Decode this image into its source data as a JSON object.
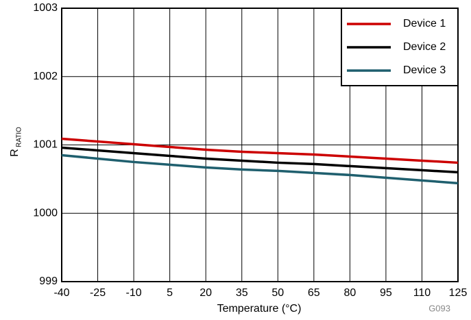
{
  "chart_data": {
    "type": "line",
    "x_label": "Temperature (°C)",
    "y_label": {
      "main": "R",
      "sub": "RATIO"
    },
    "note": "G093",
    "x": [
      -40,
      -25,
      -10,
      5,
      20,
      35,
      50,
      65,
      80,
      95,
      110,
      125
    ],
    "series": [
      {
        "name": "Device 1",
        "color": "#cc0000",
        "values": [
          1001.09,
          1001.05,
          1001.01,
          1000.97,
          1000.93,
          1000.9,
          1000.88,
          1000.86,
          1000.83,
          1000.8,
          1000.77,
          1000.74
        ]
      },
      {
        "name": "Device 2",
        "color": "#000000",
        "values": [
          1000.96,
          1000.92,
          1000.88,
          1000.84,
          1000.8,
          1000.77,
          1000.74,
          1000.72,
          1000.69,
          1000.66,
          1000.63,
          1000.6
        ]
      },
      {
        "name": "Device 3",
        "color": "#1f5f6e",
        "values": [
          1000.85,
          1000.8,
          1000.75,
          1000.71,
          1000.67,
          1000.64,
          1000.62,
          1000.59,
          1000.56,
          1000.52,
          1000.48,
          1000.44
        ]
      }
    ],
    "xlim": [
      -40,
      125
    ],
    "xticks": [
      -40,
      -25,
      -10,
      5,
      20,
      35,
      50,
      65,
      80,
      95,
      110,
      125
    ],
    "ylim": [
      999,
      1003
    ],
    "yticks": [
      999,
      1000,
      1001,
      1002,
      1003
    ],
    "grid": true,
    "legend": "top-right"
  }
}
